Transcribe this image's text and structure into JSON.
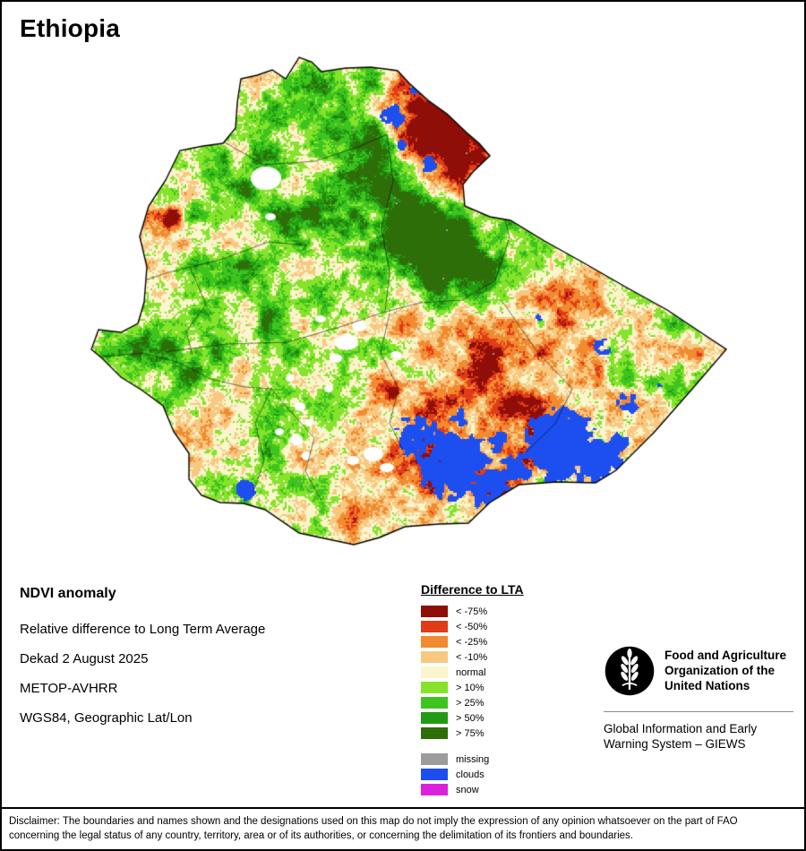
{
  "title": "Ethiopia",
  "info": {
    "heading": "NDVI anomaly",
    "lines": [
      "Relative difference to Long Term Average",
      "Dekad 2 August 2025",
      "METOP-AVHRR",
      "WGS84, Geographic Lat/Lon"
    ]
  },
  "legend": {
    "title": "Difference to LTA",
    "items": [
      {
        "label": "< -75%",
        "color": "#8f0e08"
      },
      {
        "label": "< -50%",
        "color": "#e23b17"
      },
      {
        "label": "< -25%",
        "color": "#f28a30"
      },
      {
        "label": "< -10%",
        "color": "#f8c880"
      },
      {
        "label": "normal",
        "color": "#faf5cc"
      },
      {
        "label": "> 10%",
        "color": "#84e32a"
      },
      {
        "label": "> 25%",
        "color": "#3ec41e"
      },
      {
        "label": "> 50%",
        "color": "#219c12"
      },
      {
        "label": "> 75%",
        "color": "#2e6e08"
      }
    ],
    "extra": [
      {
        "label": "missing",
        "color": "#9c9c9c"
      },
      {
        "label": "clouds",
        "color": "#1d4ef0"
      },
      {
        "label": "snow",
        "color": "#dc21dc"
      }
    ]
  },
  "fao": {
    "org_lines": [
      "Food and Agriculture",
      "Organization of the",
      "United Nations"
    ],
    "giews_lines": [
      "Global Information and Early",
      "Warning System – GIEWS"
    ]
  },
  "disclaimer": "Disclaimer: The boundaries and names shown and the designations used on this map do not imply the expression of any opinion whatsoever on the part of FAO concerning the legal status of any country, territory, area or of its authorities, or concerning the delimitation of its frontiers and boundaries."
}
